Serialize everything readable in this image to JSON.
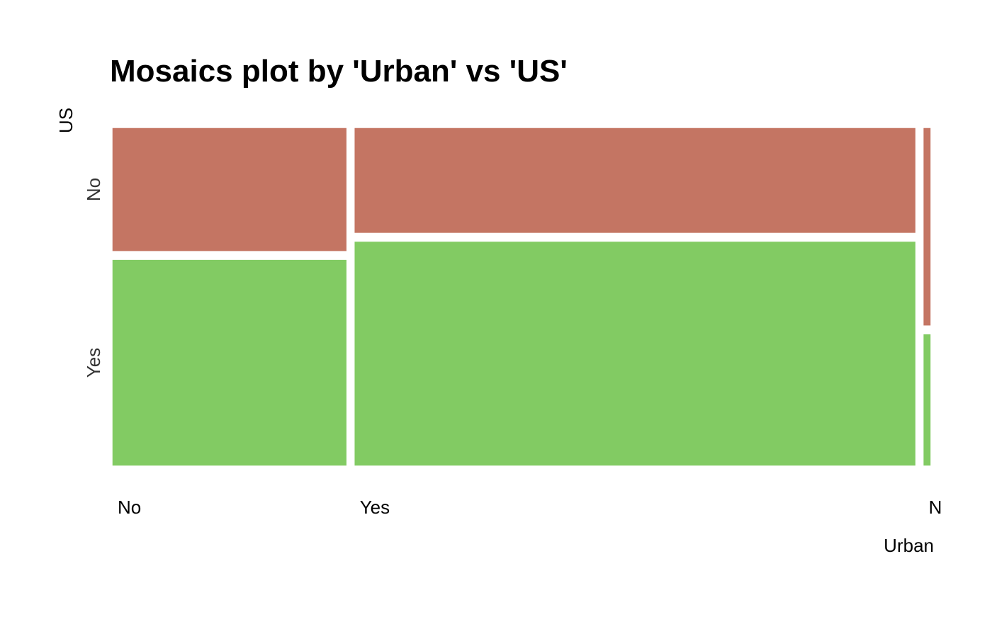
{
  "colors": {
    "background": "#ffffff",
    "No": "#c47563",
    "Yes": "#82cb63",
    "gap": "#ffffff"
  },
  "chart_data": {
    "type": "mosaic",
    "title": "Mosaics plot by 'Urban' vs 'US'",
    "xlabel": "Urban",
    "ylabel": "US",
    "x_categories": [
      "No",
      "Yes",
      "NA"
    ],
    "x_tick_labels": [
      "No",
      "Yes",
      "N"
    ],
    "y_categories": [
      "No",
      "Yes"
    ],
    "y_tick_labels": [
      "No",
      "Yes"
    ],
    "grid": false,
    "legend": "none",
    "columns": [
      {
        "category": "No",
        "width_fraction": 0.292,
        "proportions": {
          "No": 0.375,
          "Yes": 0.625
        }
      },
      {
        "category": "Yes",
        "width_fraction": 0.698,
        "proportions": {
          "No": 0.32,
          "Yes": 0.68
        }
      },
      {
        "category": "NA",
        "width_fraction": 0.01,
        "proportions": {
          "No": 0.6,
          "Yes": 0.4
        }
      }
    ]
  }
}
